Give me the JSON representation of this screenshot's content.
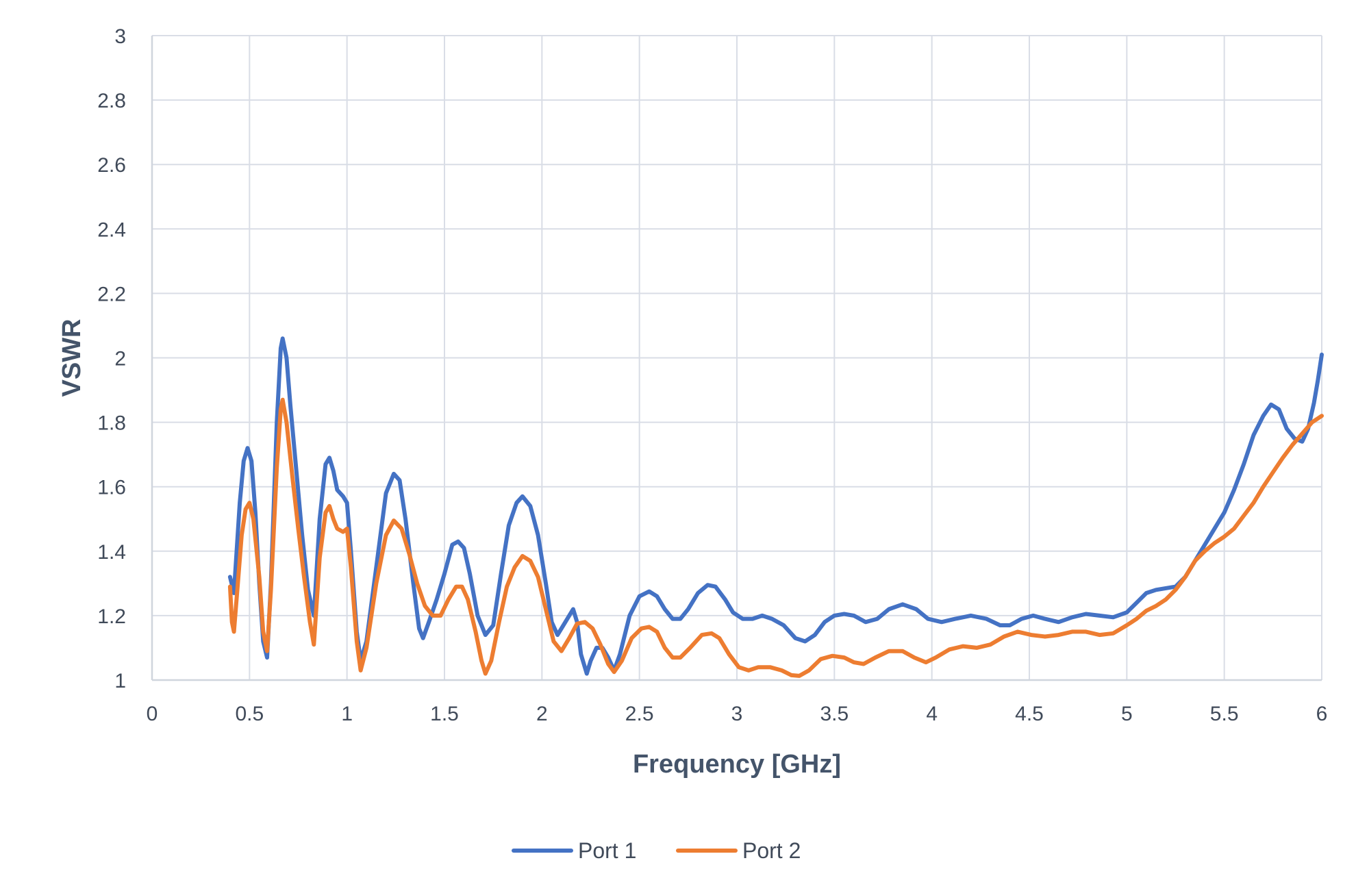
{
  "chart_data": {
    "type": "line",
    "title": "",
    "xlabel": "Frequency [GHz]",
    "ylabel": "VSWR",
    "xlim": [
      0,
      6
    ],
    "ylim": [
      1,
      3
    ],
    "grid": true,
    "legend_position": "bottom",
    "x_ticks": [
      "0",
      "0.5",
      "1",
      "1.5",
      "2",
      "2.5",
      "3",
      "3.5",
      "4",
      "4.5",
      "5",
      "5.5",
      "6"
    ],
    "y_ticks": [
      "1",
      "1.2",
      "1.4",
      "1.6",
      "1.8",
      "2",
      "2.2",
      "2.4",
      "2.6",
      "2.8",
      "3"
    ],
    "series": [
      {
        "name": "Port 1",
        "color": "#4472c4",
        "points": [
          [
            0.4,
            1.32
          ],
          [
            0.42,
            1.27
          ],
          [
            0.45,
            1.55
          ],
          [
            0.47,
            1.68
          ],
          [
            0.49,
            1.72
          ],
          [
            0.51,
            1.68
          ],
          [
            0.53,
            1.52
          ],
          [
            0.55,
            1.3
          ],
          [
            0.57,
            1.12
          ],
          [
            0.59,
            1.07
          ],
          [
            0.61,
            1.3
          ],
          [
            0.64,
            1.8
          ],
          [
            0.66,
            2.03
          ],
          [
            0.67,
            2.06
          ],
          [
            0.69,
            2.0
          ],
          [
            0.71,
            1.85
          ],
          [
            0.74,
            1.65
          ],
          [
            0.77,
            1.45
          ],
          [
            0.8,
            1.28
          ],
          [
            0.83,
            1.2
          ],
          [
            0.86,
            1.5
          ],
          [
            0.89,
            1.67
          ],
          [
            0.91,
            1.69
          ],
          [
            0.93,
            1.65
          ],
          [
            0.95,
            1.59
          ],
          [
            0.98,
            1.57
          ],
          [
            1.0,
            1.55
          ],
          [
            1.02,
            1.4
          ],
          [
            1.05,
            1.15
          ],
          [
            1.07,
            1.06
          ],
          [
            1.1,
            1.12
          ],
          [
            1.15,
            1.35
          ],
          [
            1.2,
            1.58
          ],
          [
            1.24,
            1.64
          ],
          [
            1.27,
            1.62
          ],
          [
            1.3,
            1.5
          ],
          [
            1.34,
            1.3
          ],
          [
            1.37,
            1.16
          ],
          [
            1.39,
            1.13
          ],
          [
            1.42,
            1.18
          ],
          [
            1.46,
            1.25
          ],
          [
            1.5,
            1.33
          ],
          [
            1.54,
            1.42
          ],
          [
            1.57,
            1.43
          ],
          [
            1.6,
            1.41
          ],
          [
            1.63,
            1.33
          ],
          [
            1.67,
            1.2
          ],
          [
            1.71,
            1.14
          ],
          [
            1.75,
            1.17
          ],
          [
            1.79,
            1.33
          ],
          [
            1.83,
            1.48
          ],
          [
            1.87,
            1.55
          ],
          [
            1.9,
            1.57
          ],
          [
            1.94,
            1.54
          ],
          [
            1.98,
            1.45
          ],
          [
            2.02,
            1.3
          ],
          [
            2.05,
            1.18
          ],
          [
            2.08,
            1.14
          ],
          [
            2.12,
            1.18
          ],
          [
            2.16,
            1.22
          ],
          [
            2.18,
            1.18
          ],
          [
            2.2,
            1.08
          ],
          [
            2.23,
            1.02
          ],
          [
            2.25,
            1.06
          ],
          [
            2.28,
            1.1
          ],
          [
            2.31,
            1.1
          ],
          [
            2.34,
            1.07
          ],
          [
            2.37,
            1.03
          ],
          [
            2.4,
            1.08
          ],
          [
            2.45,
            1.2
          ],
          [
            2.5,
            1.26
          ],
          [
            2.55,
            1.275
          ],
          [
            2.59,
            1.26
          ],
          [
            2.63,
            1.22
          ],
          [
            2.67,
            1.19
          ],
          [
            2.71,
            1.19
          ],
          [
            2.75,
            1.22
          ],
          [
            2.8,
            1.27
          ],
          [
            2.85,
            1.295
          ],
          [
            2.89,
            1.29
          ],
          [
            2.94,
            1.25
          ],
          [
            2.98,
            1.21
          ],
          [
            3.03,
            1.19
          ],
          [
            3.08,
            1.19
          ],
          [
            3.13,
            1.2
          ],
          [
            3.18,
            1.19
          ],
          [
            3.24,
            1.17
          ],
          [
            3.3,
            1.13
          ],
          [
            3.35,
            1.12
          ],
          [
            3.4,
            1.14
          ],
          [
            3.45,
            1.18
          ],
          [
            3.5,
            1.2
          ],
          [
            3.55,
            1.205
          ],
          [
            3.6,
            1.2
          ],
          [
            3.66,
            1.18
          ],
          [
            3.72,
            1.19
          ],
          [
            3.78,
            1.22
          ],
          [
            3.85,
            1.235
          ],
          [
            3.92,
            1.22
          ],
          [
            3.98,
            1.19
          ],
          [
            4.05,
            1.18
          ],
          [
            4.12,
            1.19
          ],
          [
            4.2,
            1.2
          ],
          [
            4.28,
            1.19
          ],
          [
            4.35,
            1.17
          ],
          [
            4.4,
            1.17
          ],
          [
            4.46,
            1.19
          ],
          [
            4.52,
            1.2
          ],
          [
            4.58,
            1.19
          ],
          [
            4.65,
            1.18
          ],
          [
            4.72,
            1.195
          ],
          [
            4.79,
            1.205
          ],
          [
            4.86,
            1.2
          ],
          [
            4.93,
            1.195
          ],
          [
            5.0,
            1.21
          ],
          [
            5.05,
            1.24
          ],
          [
            5.1,
            1.27
          ],
          [
            5.15,
            1.28
          ],
          [
            5.2,
            1.285
          ],
          [
            5.25,
            1.29
          ],
          [
            5.3,
            1.32
          ],
          [
            5.35,
            1.37
          ],
          [
            5.4,
            1.42
          ],
          [
            5.45,
            1.47
          ],
          [
            5.5,
            1.52
          ],
          [
            5.55,
            1.59
          ],
          [
            5.6,
            1.67
          ],
          [
            5.65,
            1.76
          ],
          [
            5.7,
            1.82
          ],
          [
            5.74,
            1.855
          ],
          [
            5.78,
            1.84
          ],
          [
            5.82,
            1.78
          ],
          [
            5.86,
            1.75
          ],
          [
            5.9,
            1.74
          ],
          [
            5.93,
            1.78
          ],
          [
            5.96,
            1.86
          ],
          [
            5.98,
            1.93
          ],
          [
            6.0,
            2.01
          ]
        ]
      },
      {
        "name": "Port 2",
        "color": "#ed7d31",
        "points": [
          [
            0.4,
            1.29
          ],
          [
            0.41,
            1.18
          ],
          [
            0.42,
            1.15
          ],
          [
            0.44,
            1.3
          ],
          [
            0.46,
            1.45
          ],
          [
            0.48,
            1.53
          ],
          [
            0.5,
            1.55
          ],
          [
            0.52,
            1.5
          ],
          [
            0.55,
            1.32
          ],
          [
            0.57,
            1.15
          ],
          [
            0.59,
            1.09
          ],
          [
            0.61,
            1.28
          ],
          [
            0.64,
            1.66
          ],
          [
            0.66,
            1.84
          ],
          [
            0.67,
            1.87
          ],
          [
            0.69,
            1.8
          ],
          [
            0.72,
            1.63
          ],
          [
            0.75,
            1.47
          ],
          [
            0.78,
            1.32
          ],
          [
            0.81,
            1.18
          ],
          [
            0.83,
            1.11
          ],
          [
            0.86,
            1.38
          ],
          [
            0.89,
            1.52
          ],
          [
            0.91,
            1.54
          ],
          [
            0.93,
            1.5
          ],
          [
            0.95,
            1.47
          ],
          [
            0.98,
            1.46
          ],
          [
            1.0,
            1.47
          ],
          [
            1.02,
            1.35
          ],
          [
            1.05,
            1.12
          ],
          [
            1.07,
            1.03
          ],
          [
            1.1,
            1.1
          ],
          [
            1.15,
            1.3
          ],
          [
            1.2,
            1.45
          ],
          [
            1.24,
            1.495
          ],
          [
            1.28,
            1.47
          ],
          [
            1.32,
            1.39
          ],
          [
            1.36,
            1.3
          ],
          [
            1.4,
            1.23
          ],
          [
            1.44,
            1.2
          ],
          [
            1.48,
            1.2
          ],
          [
            1.52,
            1.25
          ],
          [
            1.56,
            1.29
          ],
          [
            1.59,
            1.29
          ],
          [
            1.62,
            1.25
          ],
          [
            1.66,
            1.15
          ],
          [
            1.69,
            1.06
          ],
          [
            1.71,
            1.02
          ],
          [
            1.74,
            1.06
          ],
          [
            1.78,
            1.18
          ],
          [
            1.82,
            1.29
          ],
          [
            1.86,
            1.35
          ],
          [
            1.9,
            1.385
          ],
          [
            1.94,
            1.37
          ],
          [
            1.98,
            1.32
          ],
          [
            2.02,
            1.22
          ],
          [
            2.06,
            1.12
          ],
          [
            2.1,
            1.09
          ],
          [
            2.14,
            1.13
          ],
          [
            2.18,
            1.175
          ],
          [
            2.22,
            1.18
          ],
          [
            2.26,
            1.16
          ],
          [
            2.3,
            1.11
          ],
          [
            2.34,
            1.05
          ],
          [
            2.37,
            1.025
          ],
          [
            2.41,
            1.06
          ],
          [
            2.46,
            1.13
          ],
          [
            2.51,
            1.16
          ],
          [
            2.55,
            1.165
          ],
          [
            2.59,
            1.15
          ],
          [
            2.63,
            1.1
          ],
          [
            2.67,
            1.07
          ],
          [
            2.71,
            1.07
          ],
          [
            2.76,
            1.1
          ],
          [
            2.82,
            1.14
          ],
          [
            2.87,
            1.145
          ],
          [
            2.91,
            1.13
          ],
          [
            2.96,
            1.08
          ],
          [
            3.01,
            1.04
          ],
          [
            3.06,
            1.03
          ],
          [
            3.11,
            1.04
          ],
          [
            3.17,
            1.04
          ],
          [
            3.23,
            1.03
          ],
          [
            3.28,
            1.015
          ],
          [
            3.32,
            1.013
          ],
          [
            3.37,
            1.03
          ],
          [
            3.43,
            1.065
          ],
          [
            3.49,
            1.075
          ],
          [
            3.55,
            1.07
          ],
          [
            3.6,
            1.055
          ],
          [
            3.65,
            1.05
          ],
          [
            3.71,
            1.07
          ],
          [
            3.78,
            1.09
          ],
          [
            3.85,
            1.09
          ],
          [
            3.91,
            1.07
          ],
          [
            3.97,
            1.055
          ],
          [
            4.02,
            1.07
          ],
          [
            4.09,
            1.095
          ],
          [
            4.16,
            1.105
          ],
          [
            4.23,
            1.1
          ],
          [
            4.3,
            1.11
          ],
          [
            4.37,
            1.135
          ],
          [
            4.44,
            1.15
          ],
          [
            4.51,
            1.14
          ],
          [
            4.58,
            1.135
          ],
          [
            4.65,
            1.14
          ],
          [
            4.72,
            1.15
          ],
          [
            4.79,
            1.15
          ],
          [
            4.86,
            1.14
          ],
          [
            4.93,
            1.145
          ],
          [
            5.0,
            1.17
          ],
          [
            5.05,
            1.19
          ],
          [
            5.1,
            1.215
          ],
          [
            5.15,
            1.23
          ],
          [
            5.2,
            1.25
          ],
          [
            5.25,
            1.28
          ],
          [
            5.3,
            1.32
          ],
          [
            5.35,
            1.37
          ],
          [
            5.4,
            1.4
          ],
          [
            5.45,
            1.425
          ],
          [
            5.5,
            1.445
          ],
          [
            5.55,
            1.47
          ],
          [
            5.6,
            1.51
          ],
          [
            5.65,
            1.55
          ],
          [
            5.7,
            1.6
          ],
          [
            5.75,
            1.645
          ],
          [
            5.8,
            1.69
          ],
          [
            5.85,
            1.73
          ],
          [
            5.9,
            1.765
          ],
          [
            5.95,
            1.8
          ],
          [
            6.0,
            1.82
          ]
        ]
      }
    ]
  }
}
